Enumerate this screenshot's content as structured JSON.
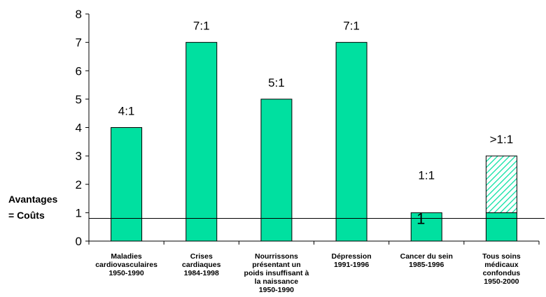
{
  "chart_data": {
    "type": "bar",
    "categories": [
      [
        "Maladies",
        "cardiovasculaires",
        "1950-1990"
      ],
      [
        "Crises",
        "cardiaques",
        "1984-1998"
      ],
      [
        "Nourrissons",
        "présentant un",
        "poids insuffisant à",
        "la naissance",
        "1950-1990"
      ],
      [
        "Dépression",
        "1991-1996"
      ],
      [
        "Cancer du sein",
        "1985-1996"
      ],
      [
        "Tous soins",
        "médicaux",
        "confondus",
        "1950-2000"
      ]
    ],
    "values": [
      4,
      7,
      5,
      7,
      1,
      1
    ],
    "uncertain_extension": [
      0,
      0,
      0,
      0,
      0,
      2
    ],
    "data_labels": [
      "4:1",
      "7:1",
      "5:1",
      "7:1",
      "1:1",
      ">1:1"
    ],
    "bar_inner_label": {
      "index": 4,
      "text": "1"
    },
    "ylim": [
      0,
      8
    ],
    "yticks": [
      0,
      1,
      2,
      3,
      4,
      5,
      6,
      7,
      8
    ],
    "reference_line": {
      "value": 0.8,
      "label_lines": [
        "Avantages",
        "= Coûts"
      ]
    },
    "colors": {
      "bar": "#00E0A0",
      "bar_stroke": "#000000",
      "hatch": "#00E0A0",
      "axis": "#000000"
    },
    "grid": false,
    "legend": "none"
  }
}
